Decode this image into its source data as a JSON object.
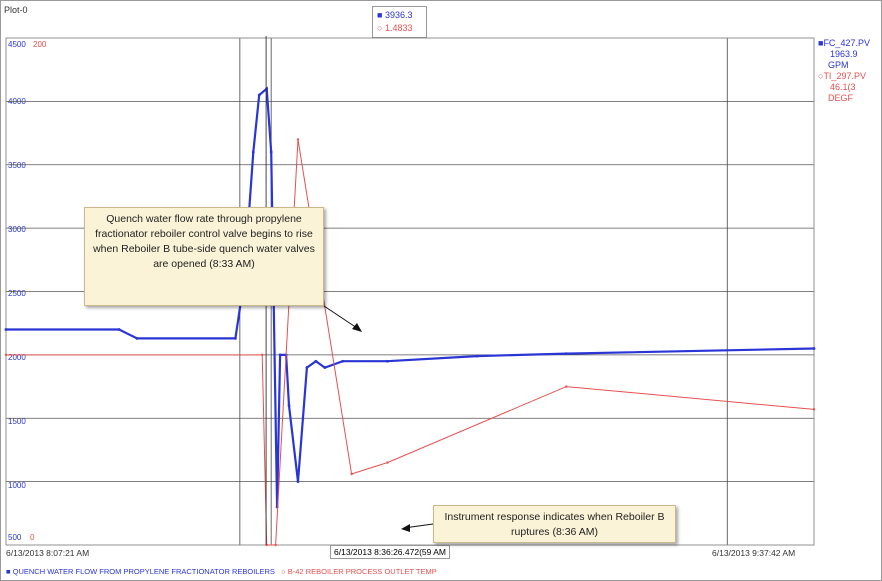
{
  "plot_title": "Plot-0",
  "cursor": {
    "blue_value": "3936.3",
    "red_value": "1.4833"
  },
  "right_legend": {
    "blue_tag": "FC_427.PV",
    "blue_value": "1963.9",
    "blue_unit": "GPM",
    "red_tag": "TI_297.PV",
    "red_value": "46.1(3",
    "red_unit": "DEGF"
  },
  "y_axis_blue": {
    "top": "4500",
    "ticks": [
      "4000",
      "3500",
      "3000",
      "2500",
      "2000",
      "1500",
      "1000"
    ],
    "bottom": "500"
  },
  "y_axis_red": {
    "top": "200",
    "bottom": "0"
  },
  "x_axis": {
    "left": "6/13/2013 8:07:21 AM",
    "mid": "6/13/2013 8:36:26.472(59 AM",
    "right": "6/13/2013 9:37:42 AM"
  },
  "bottom_legend": {
    "blue": "QUENCH WATER FLOW FROM PROPYLENE FRACTIONATOR REBOILERS",
    "red": "B-42 REBOILER PROCESS OUTLET TEMP"
  },
  "annotations": {
    "callout_1": "Quench water flow rate through propylene fractionator reboiler control valve begins to rise when Reboiler B tube-side quench water valves are opened (8:33 AM)",
    "callout_2": "Instrument response indicates when Reboiler B ruptures (8:36 AM)"
  },
  "chart_data": {
    "type": "line",
    "title": "",
    "xlabel": "",
    "ylabel": "",
    "x_range": [
      "8:07:21",
      "9:37:42"
    ],
    "ylim": [
      500,
      4500
    ],
    "grid": true,
    "series": [
      {
        "name": "FC_427.PV",
        "color": "#2a35d6",
        "x": [
          "8:07:21",
          "8:20",
          "8:22",
          "8:33",
          "8:34",
          "8:35",
          "8:35:40",
          "8:36:30",
          "8:37",
          "8:37:40",
          "8:38",
          "8:38:40",
          "8:39",
          "8:40",
          "8:41",
          "8:42",
          "8:43",
          "8:45",
          "8:50",
          "9:00",
          "9:10",
          "9:37:42"
        ],
        "values": [
          2200,
          2200,
          2130,
          2130,
          2600,
          3600,
          4050,
          4100,
          3600,
          800,
          2000,
          2000,
          1600,
          1000,
          1900,
          1950,
          1900,
          1950,
          1950,
          1990,
          2010,
          2050
        ]
      },
      {
        "name": "TI_297.PV",
        "color": "#e6504f",
        "x": [
          "8:07:21",
          "8:36",
          "8:36:30",
          "8:37:30",
          "8:40",
          "8:46",
          "8:50",
          "9:10",
          "9:37:42"
        ],
        "values": [
          2000,
          2000,
          500,
          500,
          3700,
          1060,
          1150,
          1750,
          1570
        ]
      }
    ]
  }
}
